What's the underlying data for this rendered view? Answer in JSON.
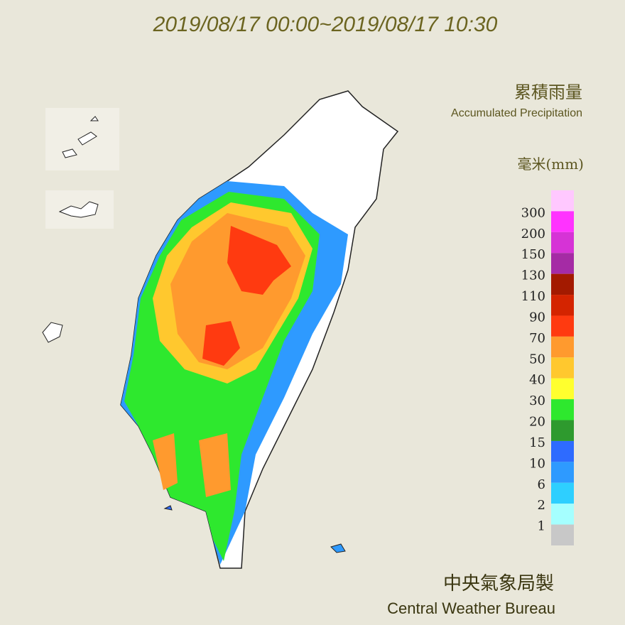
{
  "header": {
    "title": "2019/08/17 00:00~2019/08/17 10:30",
    "legend_title": "累積雨量",
    "legend_subtitle": "Accumulated Precipitation",
    "unit": "毫米(mm)"
  },
  "legend": {
    "top_color": "#ffc8ff",
    "levels": [
      {
        "value": 300,
        "color": "#ff33ff"
      },
      {
        "value": 200,
        "color": "#d633d6"
      },
      {
        "value": 150,
        "color": "#a52ba5"
      },
      {
        "value": 130,
        "color": "#a31a00"
      },
      {
        "value": 110,
        "color": "#d42400"
      },
      {
        "value": 90,
        "color": "#ff3a10"
      },
      {
        "value": 70,
        "color": "#ff9a2e"
      },
      {
        "value": 50,
        "color": "#ffc82e"
      },
      {
        "value": 40,
        "color": "#ffff2e"
      },
      {
        "value": 30,
        "color": "#2ee82e"
      },
      {
        "value": 20,
        "color": "#2e9a2e"
      },
      {
        "value": 15,
        "color": "#2e6bff"
      },
      {
        "value": 10,
        "color": "#2e9aff"
      },
      {
        "value": 6,
        "color": "#2ecfff"
      },
      {
        "value": 2,
        "color": "#a5ffff"
      },
      {
        "value": 1,
        "color": "#c8c8c8"
      }
    ]
  },
  "footer": {
    "org_zh": "中央氣象局製",
    "org_en": "Central Weather Bureau"
  }
}
